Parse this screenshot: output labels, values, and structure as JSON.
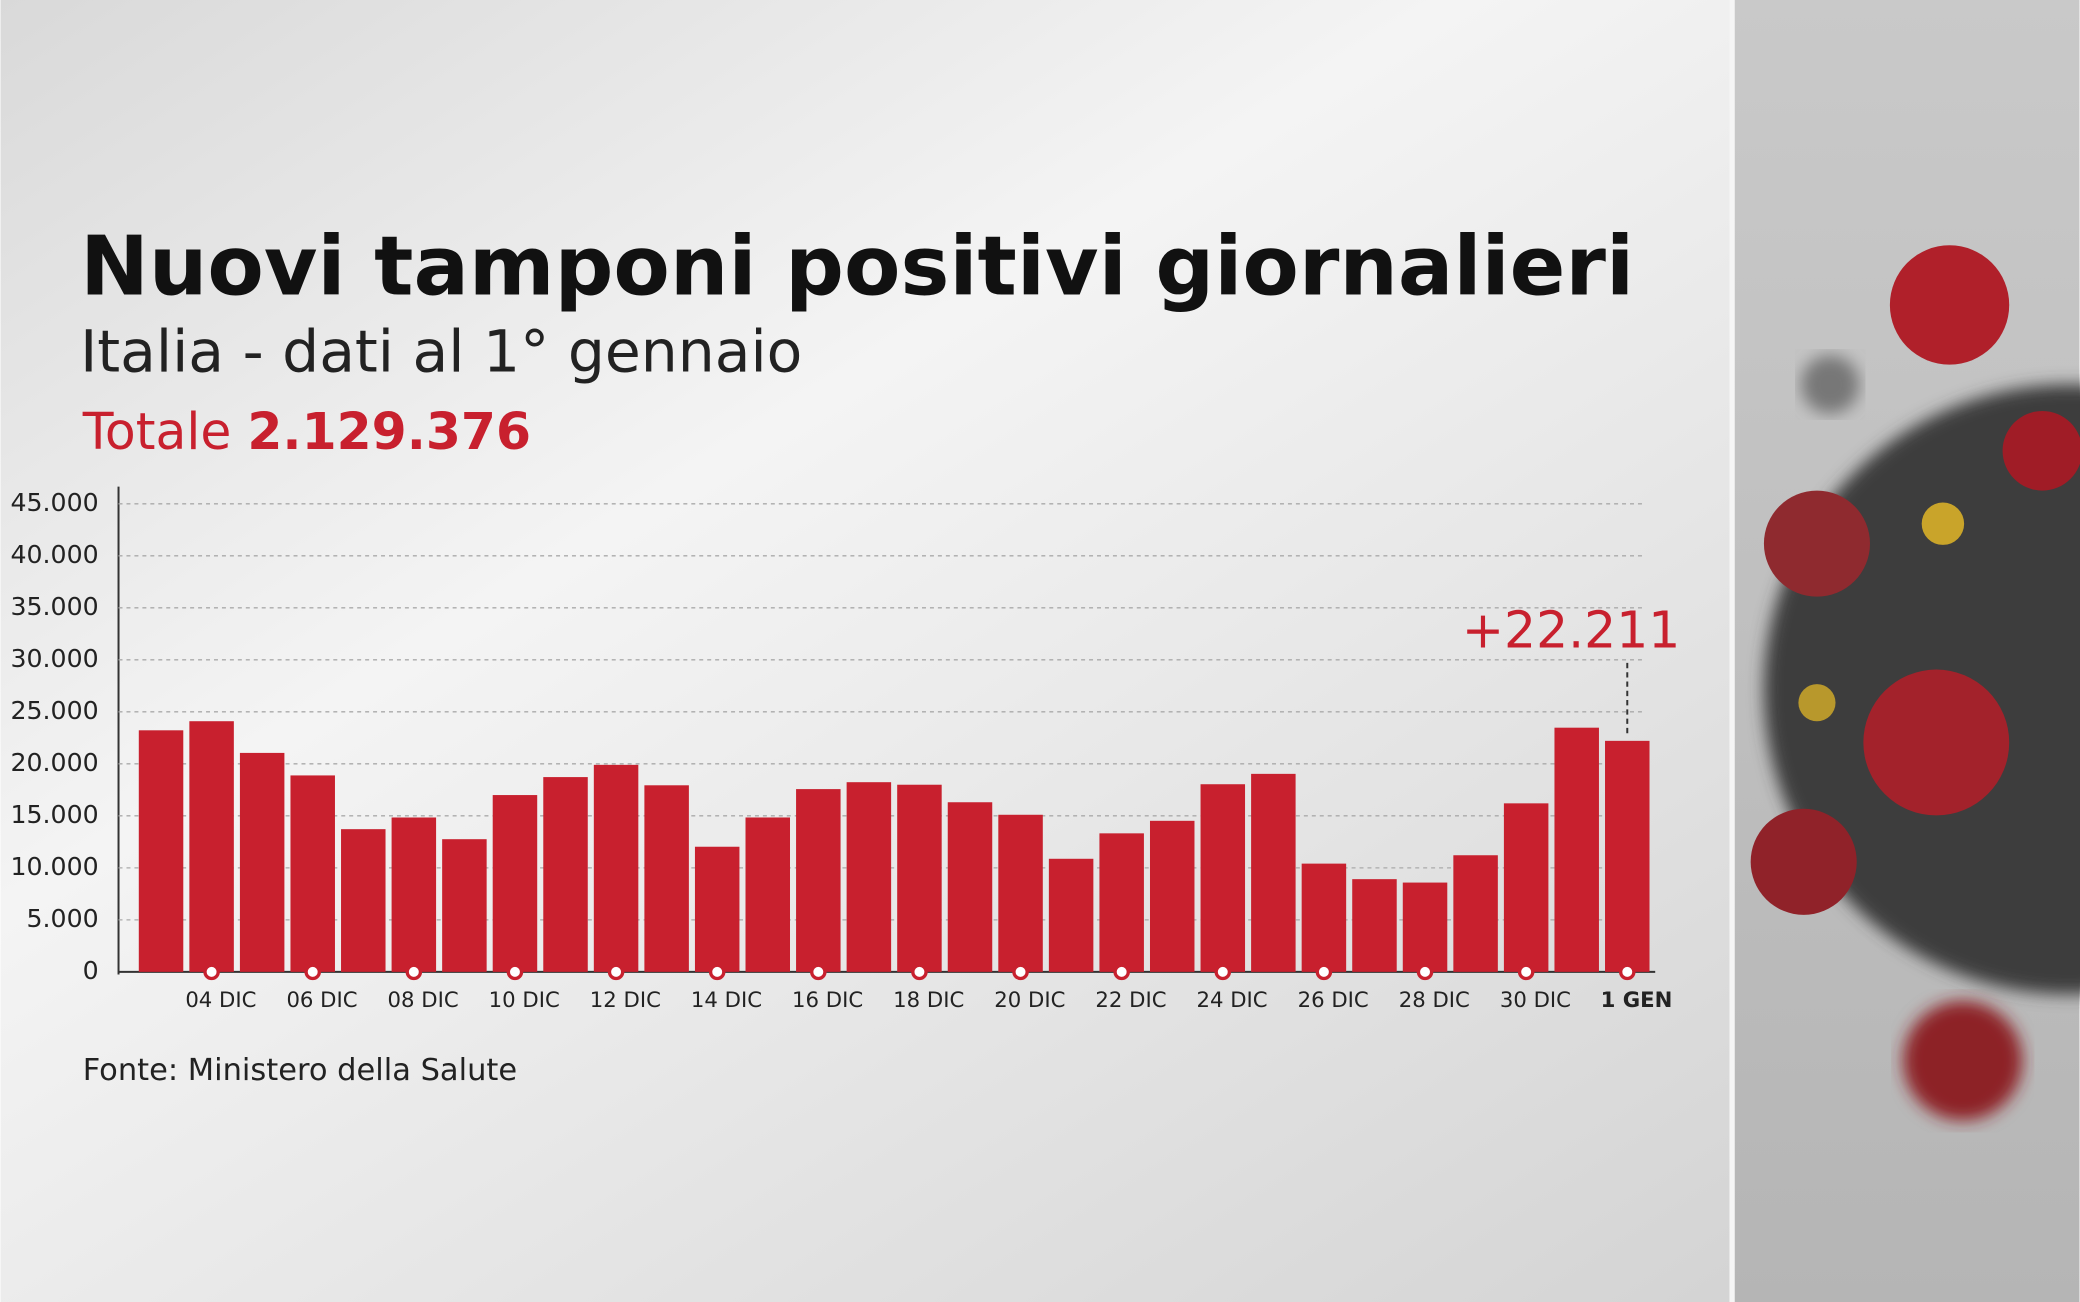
{
  "chart_data": {
    "type": "bar",
    "title": "Nuovi tamponi positivi giornalieri",
    "subtitle": "Italia - dati al 1° gennaio",
    "total_label": "Totale",
    "total": "2.129.376",
    "source": "Fonte: Ministero della Salute",
    "annotation": "+22.211",
    "categories": [
      null,
      "04 DIC",
      null,
      "06 DIC",
      null,
      "08 DIC",
      null,
      "10 DIC",
      null,
      "12 DIC",
      null,
      "14 DIC",
      null,
      "16 DIC",
      null,
      "18 DIC",
      null,
      "20 DIC",
      null,
      "22 DIC",
      null,
      "24 DIC",
      null,
      "26 DIC",
      null,
      "28 DIC",
      null,
      "30 DIC",
      null,
      "1 GEN"
    ],
    "values": [
      23225,
      24099,
      21052,
      18887,
      13720,
      14842,
      12756,
      16999,
      18727,
      19903,
      17938,
      12030,
      14844,
      17572,
      18236,
      17992,
      16308,
      15104,
      10872,
      13318,
      14522,
      18040,
      19037,
      10407,
      8913,
      8585,
      11212,
      16202,
      23477,
      22211
    ],
    "color": "#c8202e",
    "ylim": [
      0,
      45000
    ],
    "yticks": [
      0,
      {
        "value": 5000,
        "label": "5.000"
      },
      {
        "value": 10000,
        "label": "10.000"
      },
      {
        "value": 15000,
        "label": "15.000"
      },
      {
        "value": 20000,
        "label": "20.000"
      },
      {
        "value": 25000,
        "label": "25.000"
      },
      {
        "value": 30000,
        "label": "30.000"
      },
      {
        "value": 35000,
        "label": "35.000"
      },
      {
        "value": 40000,
        "label": "40.000"
      },
      {
        "value": 45000,
        "label": "45.000"
      }
    ],
    "grid": true
  }
}
